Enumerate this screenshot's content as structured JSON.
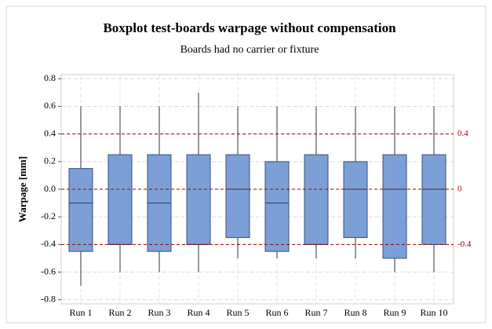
{
  "chart_data": {
    "type": "box",
    "title": "Boxplot test-boards warpage without compensation",
    "subtitle": "Boards had no carrier or fixture",
    "y_label": "Warpage [mm]",
    "categories": [
      "Run 1",
      "Run 2",
      "Run 3",
      "Run 4",
      "Run 5",
      "Run 6",
      "Run 7",
      "Run 8",
      "Run 9",
      "Run 10"
    ],
    "min": [
      -0.7,
      -0.6,
      -0.6,
      -0.6,
      -0.5,
      -0.5,
      -0.5,
      -0.5,
      -0.6,
      -0.6
    ],
    "q1": [
      -0.45,
      -0.4,
      -0.45,
      -0.4,
      -0.35,
      -0.45,
      -0.4,
      -0.35,
      -0.5,
      -0.4
    ],
    "median": [
      -0.1,
      -0.4,
      -0.1,
      -0.4,
      0.0,
      -0.1,
      -0.4,
      0.0,
      0.0,
      0.0
    ],
    "q3": [
      0.15,
      0.25,
      0.25,
      0.25,
      0.25,
      0.2,
      0.25,
      0.2,
      0.25,
      0.25
    ],
    "max": [
      0.6,
      0.6,
      0.6,
      0.7,
      0.6,
      0.6,
      0.6,
      0.6,
      0.6,
      0.6
    ],
    "color": "#7b9fd6",
    "ylim": [
      -0.83,
      0.83
    ],
    "yticks": [
      -0.8,
      -0.6,
      -0.4,
      -0.2,
      {
        "value": 0,
        "label": "0.0"
      },
      0.2,
      0.4,
      0.6,
      0.8
    ],
    "hlines": [
      0.4,
      0,
      -0.4
    ],
    "hline_color": "#a00000",
    "grid": true
  }
}
